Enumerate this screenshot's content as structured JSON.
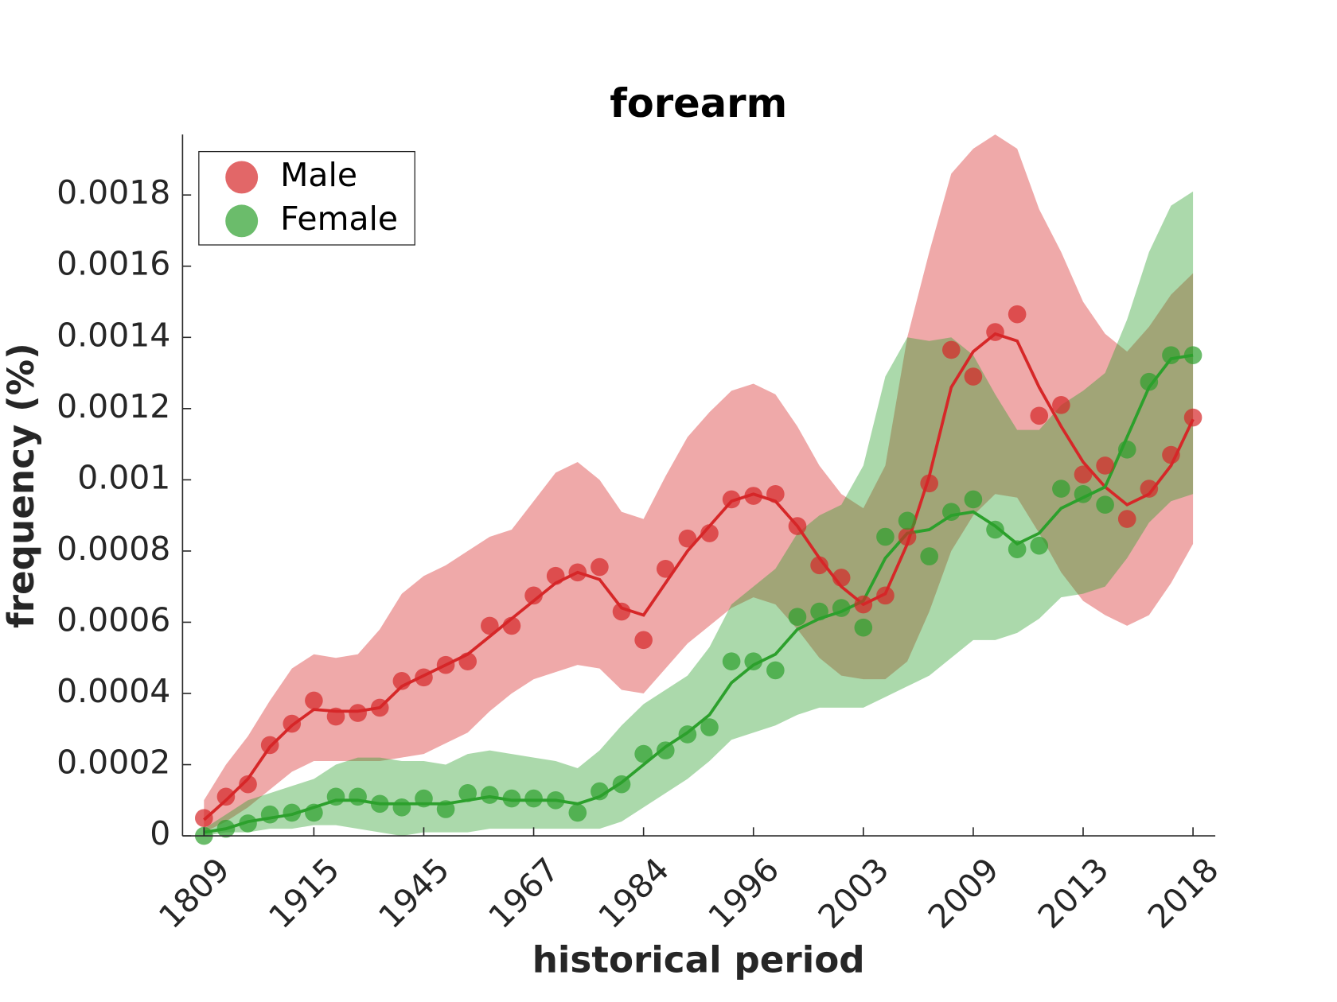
{
  "chart_data": {
    "type": "line",
    "title": "forearm",
    "xlabel": "historical period",
    "ylabel": "frequency (%)",
    "categories": [
      "1809",
      null,
      null,
      null,
      null,
      "1915",
      null,
      null,
      null,
      null,
      "1945",
      null,
      null,
      null,
      null,
      "1967",
      null,
      null,
      null,
      null,
      "1984",
      null,
      null,
      null,
      null,
      "1996",
      null,
      null,
      null,
      null,
      "2003",
      null,
      null,
      null,
      null,
      "2009",
      null,
      null,
      null,
      null,
      "2013",
      null,
      null,
      null,
      null,
      "2018"
    ],
    "ylim": [
      0,
      0.00197
    ],
    "yticks": [
      0,
      0.0002,
      0.0004,
      0.0006,
      0.0008,
      0.001,
      0.0012,
      0.0014,
      0.0016,
      0.0018
    ],
    "legend": "upper left",
    "series": [
      {
        "name": "Male",
        "color": "#d62728",
        "values": [
          5e-05,
          0.00011,
          0.000145,
          0.000255,
          0.000315,
          0.00038,
          0.000335,
          0.000345,
          0.00036,
          0.000435,
          0.000445,
          0.00048,
          0.00049,
          0.00059,
          0.00059,
          0.000675,
          0.00073,
          0.00074,
          0.000755,
          0.00063,
          0.00055,
          0.00075,
          0.000835,
          0.00085,
          0.000945,
          0.000955,
          0.00096,
          0.00087,
          0.00076,
          0.000725,
          0.00065,
          0.000675,
          0.00084,
          0.00099,
          0.001365,
          0.00129,
          0.001415,
          0.001465,
          0.00118,
          0.00121,
          0.001015,
          0.00104,
          0.00089,
          0.000975,
          0.00107,
          0.001175
        ],
        "smoothed": [
          4.5e-05,
          0.0001,
          0.00016,
          0.00025,
          0.00031,
          0.000355,
          0.00035,
          0.00035,
          0.00036,
          0.00042,
          0.00045,
          0.00048,
          0.00051,
          0.00056,
          0.00061,
          0.00066,
          0.00071,
          0.00074,
          0.00072,
          0.00064,
          0.00062,
          0.00071,
          0.0008,
          0.00087,
          0.00094,
          0.00096,
          0.00094,
          0.00087,
          0.00078,
          0.0007,
          0.00065,
          0.00068,
          0.00082,
          0.00101,
          0.00126,
          0.00136,
          0.00141,
          0.00139,
          0.00126,
          0.00115,
          0.00105,
          0.00098,
          0.00093,
          0.00096,
          0.00104,
          0.00117
        ],
        "upper": [
          0.0001,
          0.0002,
          0.00028,
          0.00038,
          0.00047,
          0.00051,
          0.0005,
          0.00051,
          0.00058,
          0.00068,
          0.00073,
          0.00076,
          0.0008,
          0.00084,
          0.00086,
          0.00094,
          0.00102,
          0.00105,
          0.001,
          0.00091,
          0.00089,
          0.00101,
          0.00112,
          0.00119,
          0.00125,
          0.00127,
          0.00124,
          0.00115,
          0.00104,
          0.00096,
          0.00092,
          0.00104,
          0.0014,
          0.00164,
          0.00186,
          0.00193,
          0.00197,
          0.00193,
          0.00176,
          0.00164,
          0.0015,
          0.00141,
          0.00136,
          0.00143,
          0.00152,
          0.00158
        ],
        "lower": [
          1e-05,
          4e-05,
          8e-05,
          0.00013,
          0.00018,
          0.00021,
          0.00021,
          0.00021,
          0.00021,
          0.00022,
          0.00023,
          0.00026,
          0.00029,
          0.00035,
          0.0004,
          0.00044,
          0.00046,
          0.00048,
          0.00047,
          0.00041,
          0.0004,
          0.00047,
          0.00054,
          0.00059,
          0.00064,
          0.00067,
          0.00065,
          0.00058,
          0.0005,
          0.00045,
          0.00044,
          0.00044,
          0.00049,
          0.00063,
          0.0008,
          0.0009,
          0.00096,
          0.00095,
          0.00085,
          0.00074,
          0.00066,
          0.00062,
          0.00059,
          0.00062,
          0.00071,
          0.00082
        ]
      },
      {
        "name": "Female",
        "color": "#2ca02c",
        "values": [
          0,
          2e-05,
          3.5e-05,
          6e-05,
          6.5e-05,
          6.5e-05,
          0.00011,
          0.00011,
          9e-05,
          8e-05,
          0.000105,
          7.5e-05,
          0.00012,
          0.000115,
          0.000105,
          0.000105,
          0.0001,
          6.5e-05,
          0.000125,
          0.000145,
          0.00023,
          0.00024,
          0.000285,
          0.000305,
          0.00049,
          0.00049,
          0.000465,
          0.000615,
          0.00063,
          0.00064,
          0.000585,
          0.00084,
          0.000885,
          0.000785,
          0.00091,
          0.000945,
          0.00086,
          0.000805,
          0.000815,
          0.000975,
          0.00096,
          0.00093,
          0.001085,
          0.001275,
          0.00135,
          0.00135
        ],
        "smoothed": [
          1e-05,
          2e-05,
          4e-05,
          5e-05,
          6e-05,
          8e-05,
          0.0001,
          0.0001,
          9e-05,
          9e-05,
          9e-05,
          9e-05,
          0.0001,
          0.00011,
          0.0001,
          0.0001,
          0.0001,
          9e-05,
          0.00011,
          0.00015,
          0.0002,
          0.00025,
          0.00029,
          0.00034,
          0.00043,
          0.00048,
          0.00051,
          0.00058,
          0.00061,
          0.00063,
          0.00066,
          0.00078,
          0.00085,
          0.00086,
          0.0009,
          0.00091,
          0.00087,
          0.00082,
          0.00085,
          0.00092,
          0.00095,
          0.00098,
          0.00112,
          0.00126,
          0.00134,
          0.00135
        ],
        "upper": [
          2e-05,
          6e-05,
          0.0001,
          0.00012,
          0.00014,
          0.00016,
          0.0002,
          0.00022,
          0.00022,
          0.00021,
          0.00021,
          0.0002,
          0.00023,
          0.00024,
          0.00023,
          0.00022,
          0.00021,
          0.00019,
          0.00024,
          0.00031,
          0.00037,
          0.00041,
          0.00045,
          0.00053,
          0.00065,
          0.0007,
          0.00075,
          0.00085,
          0.0009,
          0.00093,
          0.00104,
          0.00129,
          0.0014,
          0.00139,
          0.0014,
          0.00135,
          0.00124,
          0.00114,
          0.00114,
          0.00121,
          0.00125,
          0.0013,
          0.00145,
          0.00164,
          0.00177,
          0.00181
        ],
        "lower": [
          0,
          1e-05,
          1e-05,
          2e-05,
          2e-05,
          3e-05,
          3e-05,
          2e-05,
          1e-05,
          0,
          1e-05,
          1e-05,
          1e-05,
          2e-05,
          2e-05,
          2e-05,
          2e-05,
          2e-05,
          2e-05,
          4e-05,
          8e-05,
          0.00012,
          0.00016,
          0.00021,
          0.00027,
          0.00029,
          0.00031,
          0.00034,
          0.00036,
          0.00036,
          0.00036,
          0.00039,
          0.00042,
          0.00045,
          0.0005,
          0.00055,
          0.00055,
          0.00057,
          0.00061,
          0.00067,
          0.00068,
          0.0007,
          0.00078,
          0.00088,
          0.00094,
          0.00096
        ]
      }
    ]
  }
}
